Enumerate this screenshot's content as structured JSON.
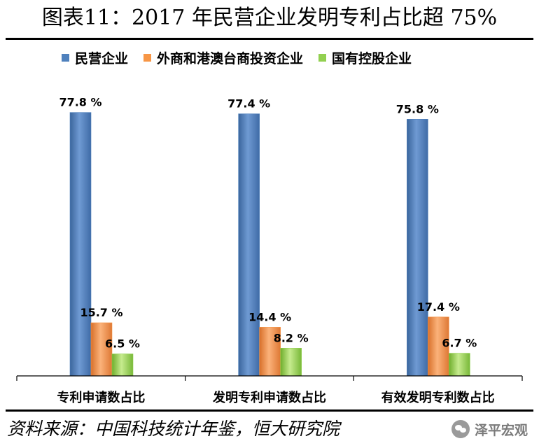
{
  "chart_data": {
    "type": "bar",
    "title": "图表11：2017 年民营企业发明专利占比超 75%",
    "categories": [
      "专利申请数占比",
      "发明专利申请数占比",
      "有效发明专利数占比"
    ],
    "series": [
      {
        "name": "民营企业",
        "values": [
          77.8,
          77.4,
          75.8
        ],
        "labels": [
          "77.8 %",
          "77.4 %",
          "75.8 %"
        ],
        "color": "#4f81bd"
      },
      {
        "name": "外商和港澳台商投资企业",
        "values": [
          15.7,
          14.4,
          17.4
        ],
        "labels": [
          "15.7 %",
          "14.4 %",
          "17.4 %"
        ],
        "color": "#f79646"
      },
      {
        "name": "国有控股企业",
        "values": [
          6.5,
          8.2,
          6.7
        ],
        "labels": [
          "6.5 %",
          "8.2 %",
          "6.7 %"
        ],
        "color": "#92d050"
      }
    ],
    "xlabel": "",
    "ylabel": "",
    "ylim": [
      0,
      80
    ],
    "grid": false,
    "legend": "top"
  },
  "source": "资料来源：中国科技统计年鉴，恒大研究院",
  "watermark": "泽平宏观"
}
